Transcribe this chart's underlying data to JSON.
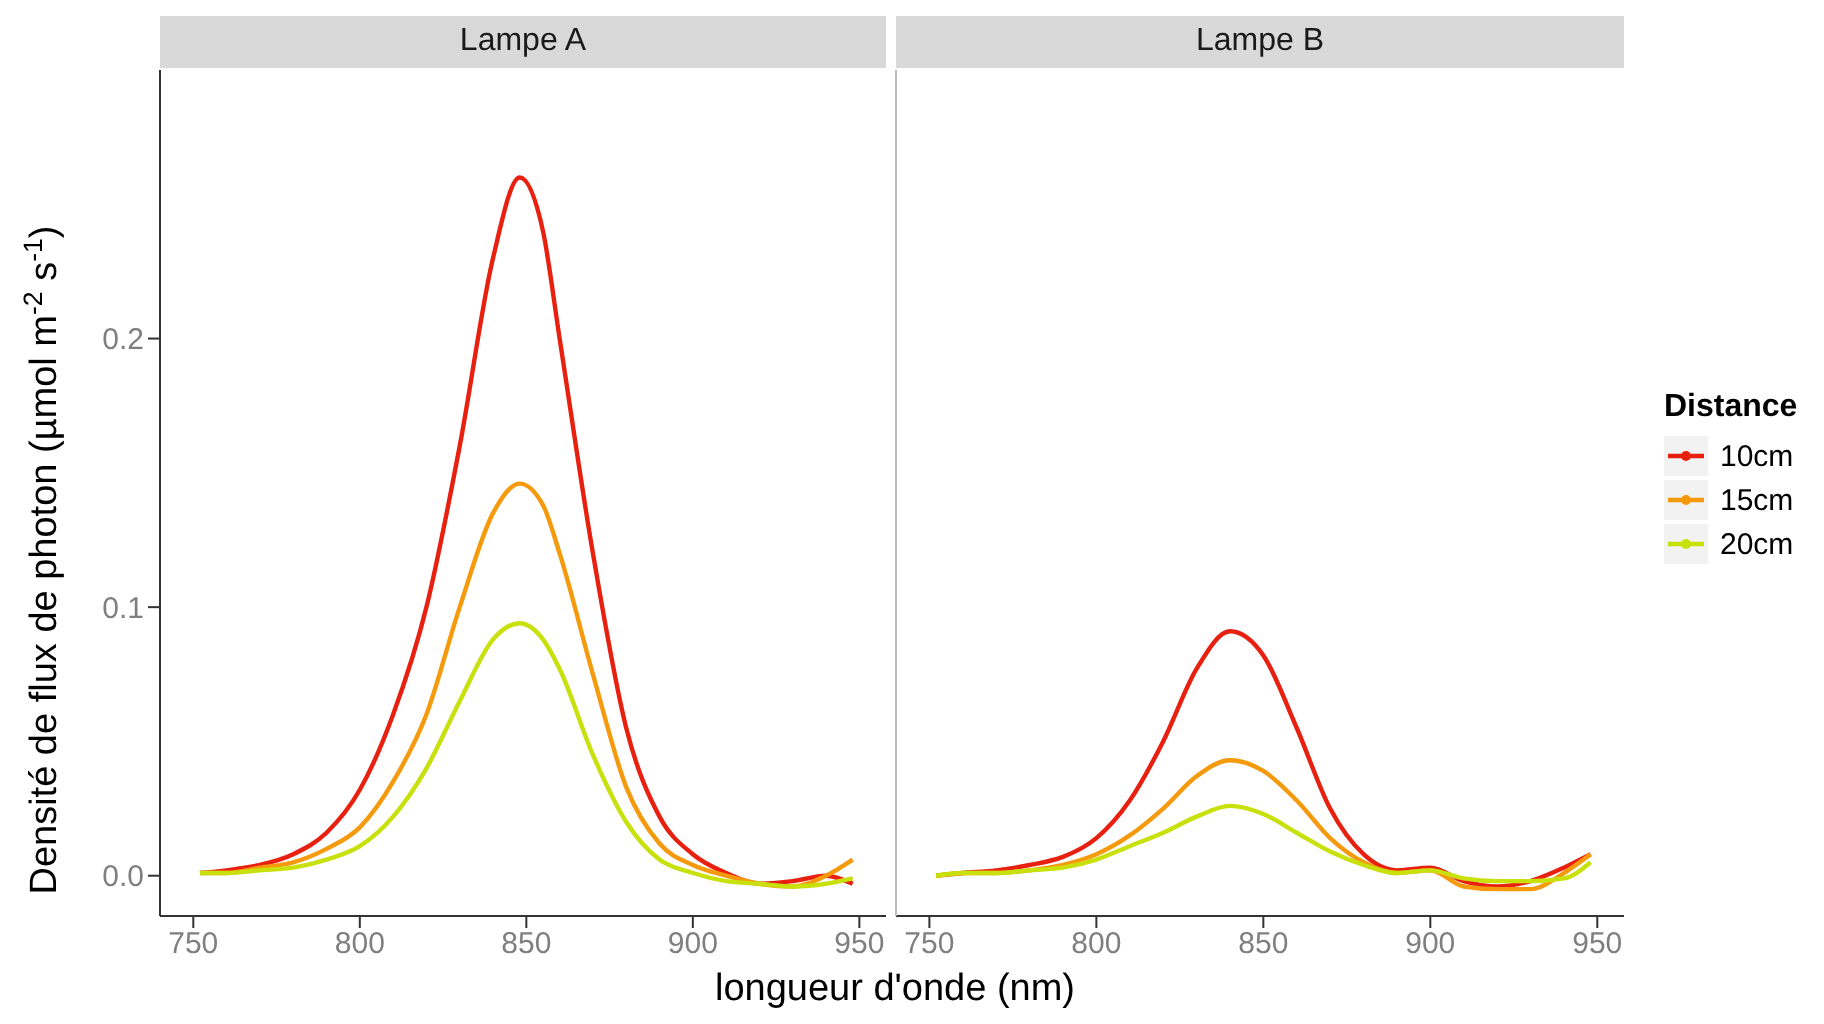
{
  "chart_data": [
    {
      "type": "line",
      "title": "Lampe A",
      "xlabel": "longueur d'onde (nm)",
      "ylabel": "Densité de flux de photon (µmol m$^{-2}$ s$^{-1}$)",
      "x": [
        752,
        760,
        770,
        780,
        790,
        800,
        810,
        820,
        830,
        840,
        848,
        855,
        860,
        870,
        880,
        890,
        900,
        910,
        920,
        930,
        940,
        948
      ],
      "xlim": [
        740,
        958
      ],
      "xticks": [
        750,
        800,
        850,
        900,
        950
      ],
      "ylim": [
        -0.015,
        0.3
      ],
      "yticks": [
        {
          "value": 0,
          "label": "0.0"
        },
        {
          "value": 0.1,
          "label": "0.1"
        },
        {
          "value": 0.2,
          "label": "0.2"
        }
      ],
      "marker": "none",
      "legend": "right",
      "legend_title": "Distance",
      "series": [
        {
          "name": "10cm",
          "color": "#e8200f",
          "values": [
            0.001,
            0.002,
            0.004,
            0.008,
            0.016,
            0.032,
            0.06,
            0.1,
            0.16,
            0.23,
            0.26,
            0.24,
            0.2,
            0.12,
            0.055,
            0.022,
            0.008,
            0.001,
            -0.003,
            -0.002,
            0.0,
            -0.003
          ]
        },
        {
          "name": "15cm",
          "color": "#f59a0c",
          "values": [
            0.001,
            0.001,
            0.003,
            0.005,
            0.01,
            0.018,
            0.035,
            0.06,
            0.1,
            0.135,
            0.146,
            0.138,
            0.12,
            0.075,
            0.033,
            0.012,
            0.004,
            0.0,
            -0.003,
            -0.004,
            0.0,
            0.006
          ]
        },
        {
          "name": "20cm",
          "color": "#c8e00c",
          "values": [
            0.001,
            0.001,
            0.002,
            0.003,
            0.006,
            0.011,
            0.022,
            0.04,
            0.065,
            0.088,
            0.094,
            0.088,
            0.077,
            0.045,
            0.02,
            0.006,
            0.001,
            -0.002,
            -0.003,
            -0.004,
            -0.003,
            -0.001
          ]
        }
      ]
    },
    {
      "type": "line",
      "title": "Lampe B",
      "x": [
        752,
        760,
        770,
        780,
        790,
        800,
        810,
        820,
        830,
        840,
        850,
        860,
        870,
        880,
        890,
        900,
        910,
        920,
        930,
        940,
        948
      ],
      "xlim": [
        740,
        958
      ],
      "xticks": [
        750,
        800,
        850,
        900,
        950
      ],
      "ylim": [
        -0.015,
        0.3
      ],
      "tick_labels": "x",
      "marker": "none",
      "series": [
        {
          "color": "#e8200f",
          "values": [
            0.0,
            0.001,
            0.002,
            0.004,
            0.007,
            0.014,
            0.028,
            0.05,
            0.077,
            0.091,
            0.082,
            0.055,
            0.025,
            0.008,
            0.002,
            0.003,
            -0.002,
            -0.004,
            -0.002,
            0.003,
            0.008
          ]
        },
        {
          "color": "#f59a0c",
          "values": [
            0.0,
            0.001,
            0.001,
            0.002,
            0.004,
            0.008,
            0.015,
            0.025,
            0.037,
            0.043,
            0.039,
            0.028,
            0.014,
            0.005,
            0.001,
            0.002,
            -0.004,
            -0.005,
            -0.005,
            0.001,
            0.008
          ]
        },
        {
          "color": "#c8e00c",
          "values": [
            0.0,
            0.001,
            0.001,
            0.002,
            0.003,
            0.006,
            0.011,
            0.016,
            0.022,
            0.026,
            0.023,
            0.016,
            0.009,
            0.004,
            0.001,
            0.002,
            -0.001,
            -0.002,
            -0.002,
            -0.001,
            0.005
          ]
        }
      ]
    }
  ]
}
